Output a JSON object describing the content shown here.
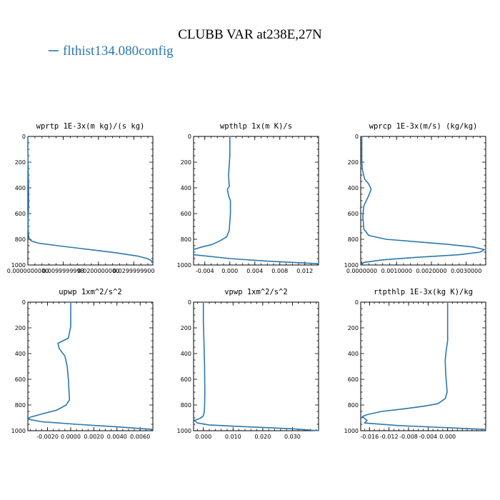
{
  "figure": {
    "title": "CLUBB VAR at238E,27N",
    "legend_label": "flthist134.080config",
    "line_color": "#2a78b0"
  },
  "chart_data": [
    {
      "type": "line",
      "title": "wprtp   1E-3x(m kg)/(s kg)",
      "xlabel": "",
      "ylabel": "",
      "xlim": [
        0,
        0.0354
      ],
      "ylim": [
        1000,
        0
      ],
      "y_reversed": true,
      "x_ticks": [
        0.0,
        0.01,
        0.02,
        0.03
      ],
      "x_tick_labels": [
        "0.0000000000",
        "0.0099999998",
        "0.0200000000",
        "0.0299999900"
      ],
      "x_minor_step": 0.002,
      "y_ticks": [
        0,
        200,
        400,
        600,
        800,
        1000
      ],
      "series": [
        {
          "name": "flthist134.080config",
          "x": [
            0,
            0,
            0.0001,
            0.0002,
            0.0002,
            0.0001,
            0.0001,
            0.0002,
            0.0004,
            0.0012,
            0.003,
            0.0085,
            0.016,
            0.025,
            0.031,
            0.0338,
            0.0349,
            0.0354
          ],
          "y": [
            0,
            100,
            250,
            400,
            550,
            650,
            720,
            770,
            800,
            815,
            830,
            850,
            875,
            905,
            930,
            950,
            965,
            990
          ]
        }
      ]
    },
    {
      "type": "line",
      "title": "wpthlp   1x(m K)/s",
      "xlabel": "",
      "ylabel": "",
      "xlim": [
        -0.0058,
        0.0142
      ],
      "ylim": [
        1000,
        0
      ],
      "y_reversed": true,
      "x_ticks": [
        -0.004,
        0.0,
        0.004,
        0.008,
        0.012
      ],
      "x_tick_labels": [
        "-0.004",
        "0.000",
        "0.004",
        "0.008",
        "0.012"
      ],
      "x_minor_step": 0.001,
      "y_ticks": [
        0,
        200,
        400,
        600,
        800,
        1000
      ],
      "series": [
        {
          "name": "flthist134.080config",
          "x": [
            0,
            0,
            -0.0002,
            -0.0001,
            -0.0004,
            -0.0002,
            0.0001,
            0.0001,
            -0.0001,
            -0.0005,
            -0.0015,
            -0.0028,
            -0.0045,
            -0.0058,
            -0.0058,
            0.0,
            0.006,
            0.0142
          ],
          "y": [
            0,
            150,
            300,
            390,
            410,
            460,
            500,
            600,
            730,
            780,
            810,
            840,
            860,
            880,
            920,
            950,
            970,
            990
          ]
        }
      ]
    },
    {
      "type": "line",
      "title": "wprcp   1E-3x(m/s) (kg/kg)",
      "xlabel": "",
      "ylabel": "",
      "xlim": [
        -3e-05,
        0.00356
      ],
      "ylim": [
        1000,
        0
      ],
      "y_reversed": true,
      "x_ticks": [
        0.0,
        0.001,
        0.002,
        0.003
      ],
      "x_tick_labels": [
        "0.0000000",
        "0.0010000",
        "0.0020000",
        "0.0030000"
      ],
      "x_minor_step": 0.0002,
      "y_ticks": [
        0,
        200,
        400,
        600,
        800,
        1000
      ],
      "series": [
        {
          "name": "flthist134.080config",
          "x": [
            0,
            0,
            2e-05,
            8e-05,
            0.0002,
            0.00027,
            0.0002,
            6e-05,
            3e-05,
            6e-05,
            0.0002,
            0.0007,
            0.0016,
            0.0025,
            0.0032,
            0.00352,
            0.0034,
            0.0028,
            0.0016,
            0.0006,
            5e-05,
            0
          ],
          "y": [
            0,
            200,
            260,
            330,
            370,
            410,
            460,
            540,
            620,
            720,
            770,
            800,
            820,
            840,
            860,
            880,
            900,
            920,
            940,
            960,
            980,
            1000
          ]
        }
      ]
    },
    {
      "type": "line",
      "title": "upwp   1xm^2/s^2",
      "xlabel": "",
      "ylabel": "",
      "xlim": [
        -0.0037,
        0.0071
      ],
      "ylim": [
        1000,
        0
      ],
      "y_reversed": true,
      "x_ticks": [
        -0.002,
        0.0,
        0.002,
        0.004,
        0.006
      ],
      "x_tick_labels": [
        "-0.0020",
        "0.0000",
        "0.0020",
        "0.0040",
        "0.0060"
      ],
      "x_minor_step": 0.0005,
      "y_ticks": [
        0,
        200,
        400,
        600,
        800,
        1000
      ],
      "series": [
        {
          "name": "flthist134.080config",
          "x": [
            0,
            0,
            -0.0002,
            -0.0011,
            -0.001,
            -0.0005,
            -0.0003,
            -0.0002,
            -0.0001,
            -0.0004,
            -0.0012,
            -0.0025,
            -0.0035,
            -0.0037,
            -0.0025,
            0.0005,
            0.004,
            0.0071
          ],
          "y": [
            0,
            190,
            280,
            320,
            360,
            420,
            500,
            600,
            760,
            800,
            840,
            870,
            895,
            910,
            930,
            950,
            970,
            990
          ]
        }
      ]
    },
    {
      "type": "line",
      "title": "vpwp   1xm^2/s^2",
      "xlabel": "",
      "ylabel": "",
      "xlim": [
        -0.0033,
        0.0388
      ],
      "ylim": [
        1000,
        0
      ],
      "y_reversed": true,
      "x_ticks": [
        0.0,
        0.01,
        0.02,
        0.03
      ],
      "x_tick_labels": [
        "0.000",
        "0.010",
        "0.020",
        "0.030"
      ],
      "x_minor_step": 0.002,
      "y_ticks": [
        0,
        200,
        400,
        600,
        800,
        1000
      ],
      "series": [
        {
          "name": "flthist134.080config",
          "x": [
            0,
            0,
            0.0002,
            0.0004,
            0.0005,
            0.0004,
            0.0002,
            -0.0002,
            -0.0012,
            -0.003,
            -0.002,
            0.002,
            0.015,
            0.03,
            0.0388
          ],
          "y": [
            0,
            150,
            300,
            500,
            700,
            820,
            870,
            890,
            905,
            920,
            940,
            955,
            970,
            985,
            1000
          ]
        }
      ]
    },
    {
      "type": "line",
      "title": "rtpthlp   1E-3x(kg K)/kg",
      "xlabel": "",
      "ylabel": "",
      "xlim": [
        -0.0178,
        0.0078
      ],
      "ylim": [
        1000,
        0
      ],
      "y_reversed": true,
      "x_ticks": [
        -0.016,
        -0.012,
        -0.008,
        -0.004,
        0.0
      ],
      "x_tick_labels": [
        "-0.016",
        "-0.012",
        "-0.008",
        "-0.004",
        "0.000"
      ],
      "x_minor_step": 0.001,
      "y_ticks": [
        0,
        200,
        400,
        600,
        800,
        1000
      ],
      "series": [
        {
          "name": "flthist134.080config",
          "x": [
            0,
            0,
            -0.0003,
            -0.0005,
            -0.0004,
            -0.0001,
            -0.0005,
            -0.002,
            -0.005,
            -0.009,
            -0.0135,
            -0.0165,
            -0.0175,
            -0.017,
            -0.0165,
            -0.017,
            -0.01,
            -0.001,
            0.0078
          ],
          "y": [
            0,
            300,
            380,
            450,
            550,
            700,
            750,
            790,
            810,
            830,
            850,
            875,
            890,
            905,
            920,
            940,
            960,
            975,
            990
          ]
        }
      ]
    }
  ]
}
